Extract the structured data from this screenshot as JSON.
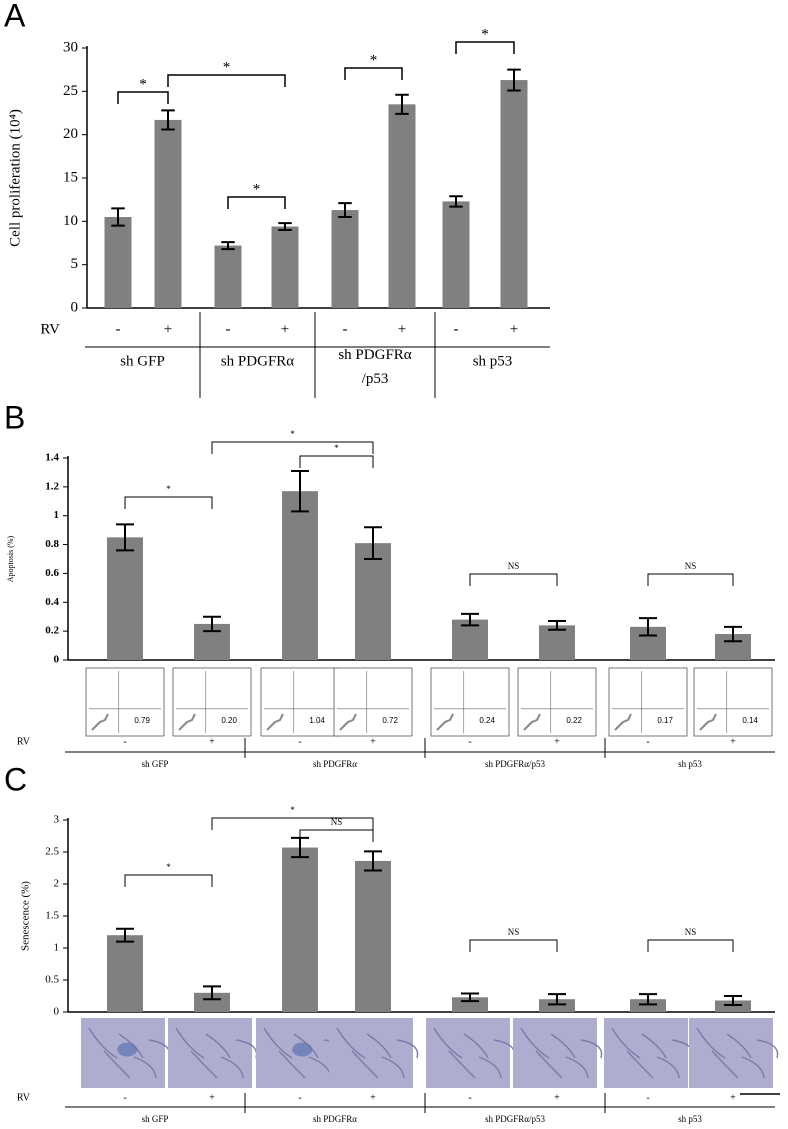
{
  "chart_data": [
    {
      "type": "bar",
      "panel": "A",
      "ylabel": "Cell proliferation (10⁴)",
      "xlabel": "RV",
      "categories": [
        "-",
        "+",
        "-",
        "+",
        "-",
        "+",
        "-",
        "+"
      ],
      "groups": [
        "sh GFP",
        "sh PDGFRα",
        "sh PDGFRα /p53",
        "sh p53"
      ],
      "values": [
        10.5,
        21.7,
        7.2,
        9.4,
        11.3,
        23.5,
        12.3,
        26.3
      ],
      "errors": [
        1.0,
        1.1,
        0.4,
        0.4,
        0.8,
        1.1,
        0.6,
        1.2
      ],
      "color": "#808080",
      "annotations": [
        "*",
        "*",
        "*",
        "*",
        "*"
      ],
      "ylim": [
        0,
        30
      ],
      "yticks": [
        0,
        5,
        10,
        15,
        20,
        25,
        30
      ]
    },
    {
      "type": "bar",
      "panel": "B",
      "ylabel": "Apoptosis (%)",
      "xlabel": "RV",
      "categories": [
        "-",
        "+",
        "-",
        "+",
        "-",
        "+",
        "-",
        "+"
      ],
      "groups": [
        "sh GFP",
        "sh PDGFRα",
        "sh PDGFRα/p53",
        "sh p53"
      ],
      "values": [
        0.85,
        0.25,
        1.17,
        0.81,
        0.28,
        0.24,
        0.23,
        0.18
      ],
      "errors": [
        0.09,
        0.05,
        0.14,
        0.11,
        0.04,
        0.03,
        0.06,
        0.05
      ],
      "color": "#808080",
      "annotations": [
        "*",
        "*",
        "*",
        "NS",
        "NS"
      ],
      "inset_labels": [
        "0.79",
        "0.20",
        "1.04",
        "0.72",
        "0.24",
        "0.22",
        "0.17",
        "0.14"
      ],
      "ylim": [
        0,
        1.4
      ],
      "yticks": [
        0,
        0.2,
        0.4,
        0.6,
        0.8,
        1,
        1.2,
        1.4
      ]
    },
    {
      "type": "bar",
      "panel": "C",
      "ylabel": "Senescence (%)",
      "xlabel": "RV",
      "categories": [
        "-",
        "+",
        "-",
        "+",
        "-",
        "+",
        "-",
        "+"
      ],
      "groups": [
        "sh GFP",
        "sh PDGFRα",
        "sh PDGFRα/p53",
        "sh p53"
      ],
      "values": [
        1.2,
        0.3,
        2.57,
        2.36,
        0.23,
        0.2,
        0.2,
        0.18
      ],
      "errors": [
        0.1,
        0.1,
        0.15,
        0.15,
        0.06,
        0.08,
        0.08,
        0.07
      ],
      "color": "#808080",
      "annotations": [
        "*",
        "*",
        "NS",
        "NS",
        "NS"
      ],
      "ylim": [
        0,
        3
      ],
      "yticks": [
        0,
        0.5,
        1,
        1.5,
        2,
        2.5,
        3
      ]
    }
  ]
}
